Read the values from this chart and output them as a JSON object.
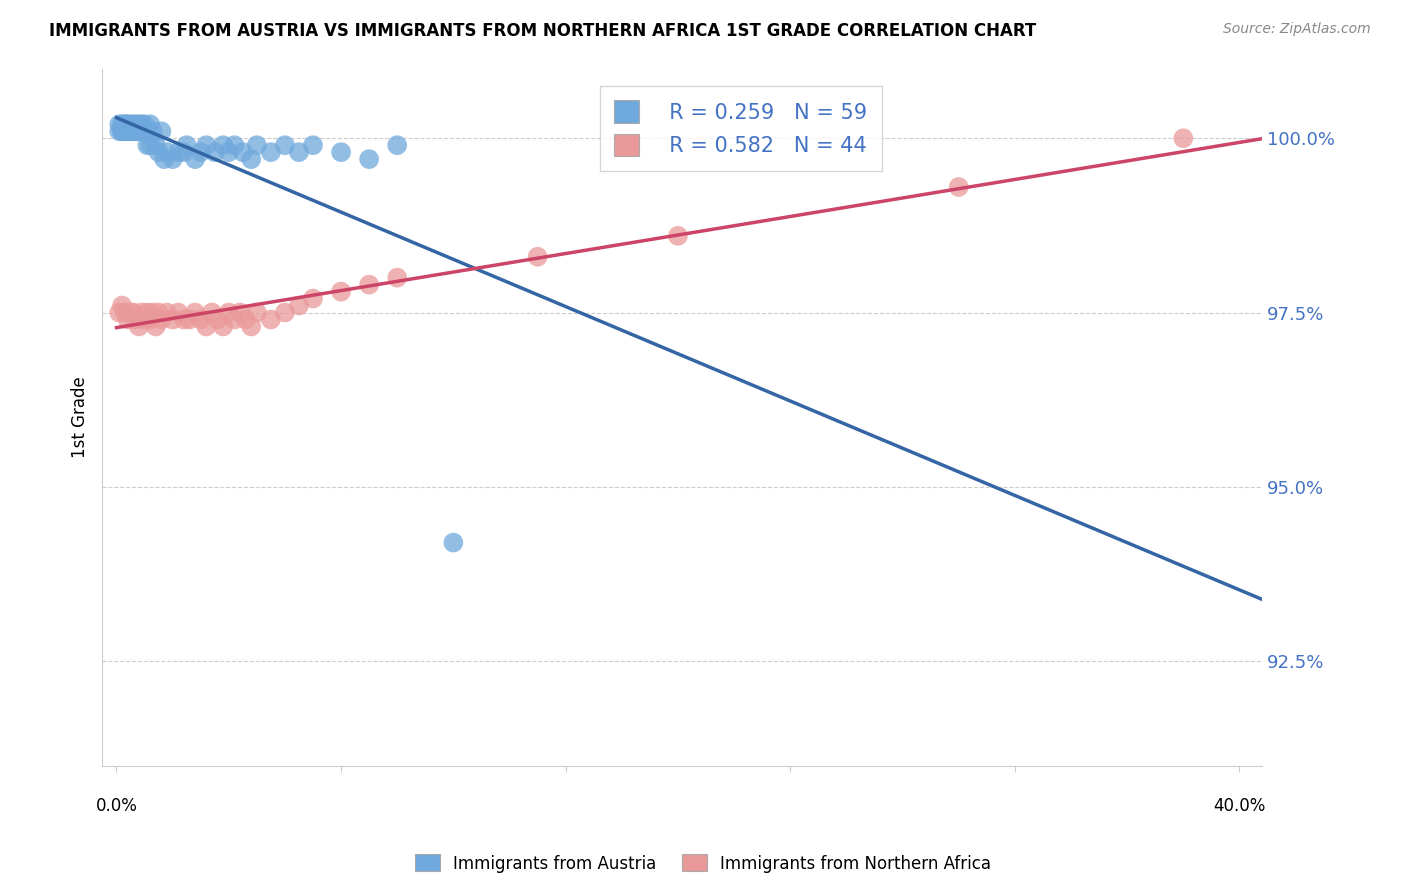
{
  "title": "IMMIGRANTS FROM AUSTRIA VS IMMIGRANTS FROM NORTHERN AFRICA 1ST GRADE CORRELATION CHART",
  "source": "Source: ZipAtlas.com",
  "ylabel": "1st Grade",
  "ylabel_ticks": [
    "100.0%",
    "97.5%",
    "95.0%",
    "92.5%"
  ],
  "ylabel_values": [
    1.0,
    0.975,
    0.95,
    0.925
  ],
  "legend1_label": "Immigrants from Austria",
  "legend2_label": "Immigrants from Northern Africa",
  "R1": "0.259",
  "N1": "59",
  "R2": "0.582",
  "N2": "44",
  "color1": "#6fa8dc",
  "color2": "#ea9999",
  "line1_color": "#3465a4",
  "line2_color": "#cc4466",
  "blue_x": [
    0.001,
    0.001,
    0.002,
    0.002,
    0.002,
    0.003,
    0.003,
    0.003,
    0.003,
    0.004,
    0.004,
    0.004,
    0.005,
    0.005,
    0.005,
    0.006,
    0.006,
    0.006,
    0.007,
    0.007,
    0.007,
    0.008,
    0.008,
    0.009,
    0.009,
    0.01,
    0.01,
    0.011,
    0.011,
    0.012,
    0.012,
    0.013,
    0.014,
    0.015,
    0.016,
    0.017,
    0.018,
    0.02,
    0.022,
    0.024,
    0.025,
    0.028,
    0.03,
    0.032,
    0.035,
    0.038,
    0.04,
    0.042,
    0.045,
    0.048,
    0.05,
    0.055,
    0.06,
    0.065,
    0.07,
    0.08,
    0.09,
    0.1,
    0.12
  ],
  "blue_y": [
    1.001,
    1.002,
    1.001,
    1.002,
    1.001,
    1.001,
    1.002,
    1.001,
    1.002,
    1.001,
    1.002,
    1.001,
    1.001,
    1.002,
    1.001,
    1.001,
    1.002,
    1.001,
    1.001,
    1.002,
    1.001,
    1.001,
    1.002,
    1.001,
    1.002,
    1.001,
    1.002,
    0.999,
    1.001,
    0.999,
    1.002,
    1.001,
    0.999,
    0.998,
    1.001,
    0.997,
    0.998,
    0.997,
    0.998,
    0.998,
    0.999,
    0.997,
    0.998,
    0.999,
    0.998,
    0.999,
    0.998,
    0.999,
    0.998,
    0.997,
    0.999,
    0.998,
    0.999,
    0.998,
    0.999,
    0.998,
    0.997,
    0.999,
    0.942
  ],
  "pink_x": [
    0.001,
    0.002,
    0.003,
    0.004,
    0.005,
    0.006,
    0.007,
    0.008,
    0.009,
    0.01,
    0.011,
    0.012,
    0.013,
    0.014,
    0.015,
    0.016,
    0.018,
    0.02,
    0.022,
    0.024,
    0.026,
    0.028,
    0.03,
    0.032,
    0.034,
    0.036,
    0.038,
    0.04,
    0.042,
    0.044,
    0.046,
    0.048,
    0.05,
    0.055,
    0.06,
    0.065,
    0.07,
    0.08,
    0.09,
    0.1,
    0.15,
    0.2,
    0.3,
    0.38
  ],
  "pink_y": [
    0.975,
    0.976,
    0.975,
    0.974,
    0.975,
    0.975,
    0.974,
    0.973,
    0.975,
    0.974,
    0.975,
    0.974,
    0.975,
    0.973,
    0.975,
    0.974,
    0.975,
    0.974,
    0.975,
    0.974,
    0.974,
    0.975,
    0.974,
    0.973,
    0.975,
    0.974,
    0.973,
    0.975,
    0.974,
    0.975,
    0.974,
    0.973,
    0.975,
    0.974,
    0.975,
    0.976,
    0.977,
    0.978,
    0.979,
    0.98,
    0.983,
    0.986,
    0.993,
    1.0
  ]
}
